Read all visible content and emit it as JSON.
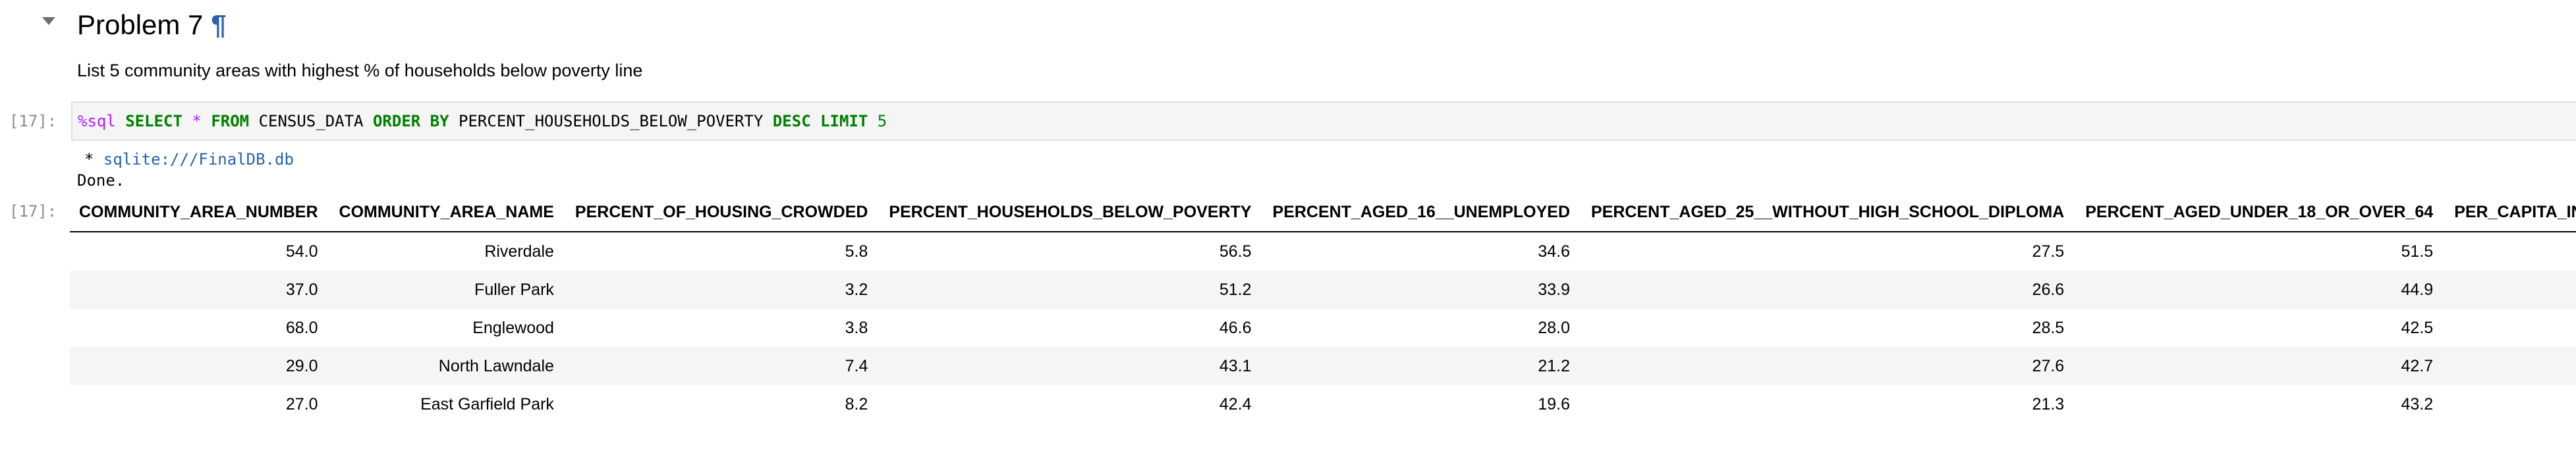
{
  "markdown_cell": {
    "heading": "Problem 7",
    "anchor": "¶",
    "description": "List 5 community areas with highest % of households below poverty line"
  },
  "code_cell": {
    "prompt": "[17]:",
    "tokens": {
      "magic": "%sql",
      "kw_select": "SELECT",
      "star": "*",
      "kw_from": "FROM",
      "table": "CENSUS_DATA",
      "kw_order_by": "ORDER BY",
      "column": "PERCENT_HOUSEHOLDS_BELOW_POVERTY",
      "kw_desc": "DESC",
      "kw_limit": "LIMIT",
      "limit": "5"
    }
  },
  "stream_output": {
    "bullet": "* ",
    "db_uri": "sqlite:///FinalDB.db",
    "done": "Done."
  },
  "result": {
    "prompt": "[17]:",
    "columns": [
      "COMMUNITY_AREA_NUMBER",
      "COMMUNITY_AREA_NAME",
      "PERCENT_OF_HOUSING_CROWDED",
      "PERCENT_HOUSEHOLDS_BELOW_POVERTY",
      "PERCENT_AGED_16__UNEMPLOYED",
      "PERCENT_AGED_25__WITHOUT_HIGH_SCHOOL_DIPLOMA",
      "PERCENT_AGED_UNDER_18_OR_OVER_64",
      "PER_CAPITA_INCOME"
    ],
    "rows": [
      [
        "54.0",
        "Riverdale",
        "5.8",
        "56.5",
        "34.6",
        "27.5",
        "51.5",
        ""
      ],
      [
        "37.0",
        "Fuller Park",
        "3.2",
        "51.2",
        "33.9",
        "26.6",
        "44.9",
        ""
      ],
      [
        "68.0",
        "Englewood",
        "3.8",
        "46.6",
        "28.0",
        "28.5",
        "42.5",
        ""
      ],
      [
        "29.0",
        "North Lawndale",
        "7.4",
        "43.1",
        "21.2",
        "27.6",
        "42.7",
        ""
      ],
      [
        "27.0",
        "East Garfield Park",
        "8.2",
        "42.4",
        "19.6",
        "21.3",
        "43.2",
        ""
      ]
    ]
  }
}
